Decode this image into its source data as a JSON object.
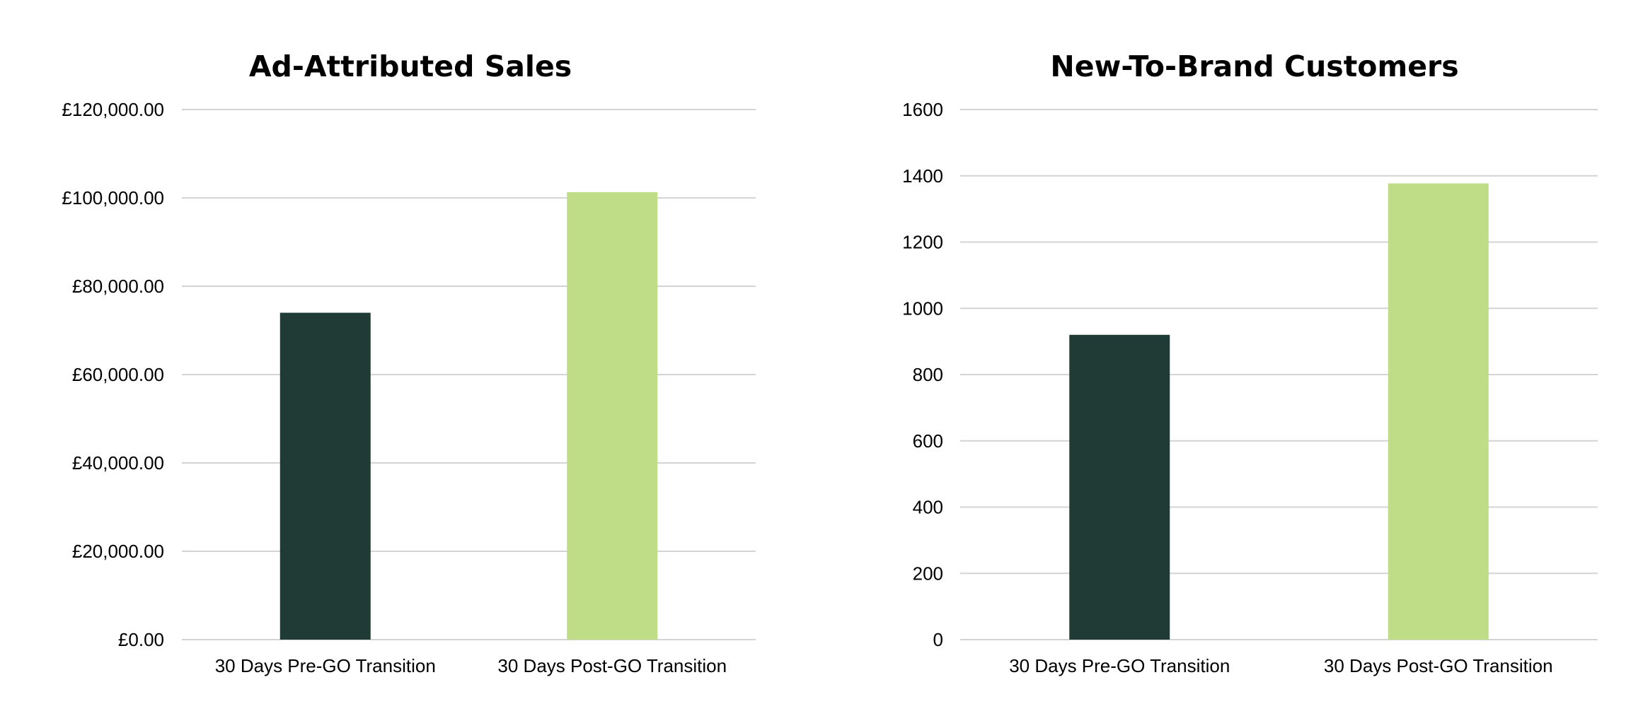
{
  "chart_data": [
    {
      "type": "bar",
      "title": "Ad-Attributed Sales",
      "xlabel": "",
      "ylabel": "",
      "categories": [
        "30 Days Pre-GO Transition",
        "30 Days Post-GO Transition"
      ],
      "values": [
        74000,
        101300
      ],
      "bar_colors": [
        "#203b35",
        "#bfdc86"
      ],
      "ylim": [
        0,
        120000
      ],
      "ytick_values": [
        0,
        20000,
        40000,
        60000,
        80000,
        100000,
        120000
      ],
      "ytick_labels": [
        "£0.00",
        "£20,000.00",
        "£40,000.00",
        "£60,000.00",
        "£80,000.00",
        "£100,000.00",
        "£120,000.00"
      ],
      "grid": true,
      "legend": "none"
    },
    {
      "type": "bar",
      "title": "New-To-Brand Customers",
      "xlabel": "",
      "ylabel": "",
      "categories": [
        "30 Days Pre-GO Transition",
        "30 Days Post-GO Transition"
      ],
      "values": [
        920,
        1377
      ],
      "bar_colors": [
        "#203b35",
        "#bfdc86"
      ],
      "ylim": [
        0,
        1600
      ],
      "ytick_values": [
        0,
        200,
        400,
        600,
        800,
        1000,
        1200,
        1400,
        1600
      ],
      "ytick_labels": [
        "0",
        "200",
        "400",
        "600",
        "800",
        "1000",
        "1200",
        "1400",
        "1600"
      ],
      "grid": true,
      "legend": "none"
    }
  ]
}
